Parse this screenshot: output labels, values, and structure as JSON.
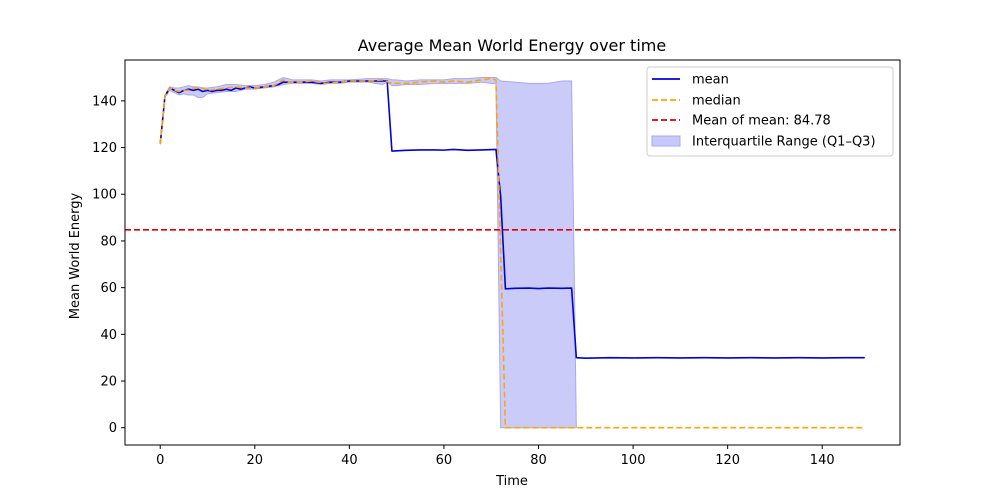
{
  "chart_data": {
    "type": "line",
    "title": "Average Mean World Energy over time",
    "xlabel": "Time",
    "ylabel": "Mean World Energy",
    "xlim": [
      -7.45,
      156.45
    ],
    "ylim": [
      -7.4,
      157.5
    ],
    "xticks": [
      0,
      20,
      40,
      60,
      80,
      100,
      120,
      140
    ],
    "yticks": [
      0,
      20,
      40,
      60,
      80,
      100,
      120,
      140
    ],
    "grid": false,
    "legend_position": "top-right",
    "colors": {
      "mean": "#0000dd",
      "median": "#ffa500",
      "mean_of_mean": "#dd0000",
      "iqr_fill": "#c8c8fa",
      "iqr_edge": "#a8a8f0"
    },
    "x_range": [
      0,
      149
    ],
    "series": [
      {
        "name": "mean",
        "style": "solid",
        "points": [
          [
            0,
            121.5
          ],
          [
            1,
            142
          ],
          [
            2,
            145.5
          ],
          [
            3,
            144.5
          ],
          [
            4,
            143.5
          ],
          [
            5,
            144.5
          ],
          [
            6,
            145
          ],
          [
            7,
            144.5
          ],
          [
            8,
            145
          ],
          [
            9,
            144
          ],
          [
            10,
            144.5
          ],
          [
            11,
            144
          ],
          [
            12,
            144.5
          ],
          [
            13,
            144.5
          ],
          [
            14,
            145
          ],
          [
            15,
            144.5
          ],
          [
            16,
            145.5
          ],
          [
            17,
            145
          ],
          [
            18,
            145.5
          ],
          [
            19,
            146
          ],
          [
            20,
            145.5
          ],
          [
            22,
            146
          ],
          [
            24,
            146.5
          ],
          [
            25,
            147
          ],
          [
            26,
            148
          ],
          [
            28,
            148
          ],
          [
            30,
            148
          ],
          [
            32,
            148
          ],
          [
            34,
            147.5
          ],
          [
            36,
            148
          ],
          [
            38,
            148
          ],
          [
            40,
            148.5
          ],
          [
            42,
            148.5
          ],
          [
            44,
            148.5
          ],
          [
            46,
            148.5
          ],
          [
            48,
            148.5
          ],
          [
            49,
            118.5
          ],
          [
            52,
            118.8
          ],
          [
            55,
            119
          ],
          [
            58,
            119
          ],
          [
            60,
            118.9
          ],
          [
            62,
            119.2
          ],
          [
            65,
            118.8
          ],
          [
            68,
            119
          ],
          [
            71,
            119.2
          ],
          [
            72,
            99
          ],
          [
            73,
            59.5
          ],
          [
            75,
            59.7
          ],
          [
            78,
            59.8
          ],
          [
            80,
            59.6
          ],
          [
            82,
            59.8
          ],
          [
            85,
            59.7
          ],
          [
            87,
            59.8
          ],
          [
            88,
            30
          ],
          [
            90,
            29.8
          ],
          [
            95,
            30
          ],
          [
            100,
            29.9
          ],
          [
            105,
            30
          ],
          [
            110,
            29.9
          ],
          [
            115,
            30
          ],
          [
            120,
            29.9
          ],
          [
            125,
            30
          ],
          [
            130,
            29.9
          ],
          [
            135,
            30
          ],
          [
            140,
            29.9
          ],
          [
            145,
            30
          ],
          [
            149,
            30
          ]
        ]
      },
      {
        "name": "median",
        "style": "dashed",
        "points": [
          [
            0,
            121.5
          ],
          [
            1,
            142
          ],
          [
            2,
            145.5
          ],
          [
            3,
            144.5
          ],
          [
            4,
            144
          ],
          [
            5,
            144.5
          ],
          [
            6,
            144.5
          ],
          [
            7,
            145.5
          ],
          [
            8,
            145.5
          ],
          [
            9,
            145.5
          ],
          [
            10,
            144.5
          ],
          [
            12,
            145
          ],
          [
            14,
            145.5
          ],
          [
            16,
            146
          ],
          [
            18,
            145.5
          ],
          [
            20,
            145.5
          ],
          [
            22,
            146
          ],
          [
            24,
            146.5
          ],
          [
            26,
            149
          ],
          [
            27,
            148
          ],
          [
            30,
            148
          ],
          [
            32,
            148.5
          ],
          [
            35,
            147.5
          ],
          [
            38,
            148
          ],
          [
            40,
            148.5
          ],
          [
            44,
            148.5
          ],
          [
            47,
            149
          ],
          [
            49,
            147.5
          ],
          [
            52,
            147.5
          ],
          [
            55,
            148
          ],
          [
            58,
            148.5
          ],
          [
            60,
            148
          ],
          [
            62,
            148.5
          ],
          [
            65,
            148
          ],
          [
            68,
            149
          ],
          [
            70,
            149.5
          ],
          [
            71,
            149
          ],
          [
            72,
            75
          ],
          [
            73,
            0
          ],
          [
            80,
            0
          ],
          [
            90,
            0
          ],
          [
            100,
            0
          ],
          [
            110,
            0
          ],
          [
            120,
            0
          ],
          [
            130,
            0
          ],
          [
            140,
            0
          ],
          [
            149,
            0
          ]
        ]
      },
      {
        "name": "Mean of mean: 84.78",
        "style": "dashed-horizontal",
        "value": 84.78
      }
    ],
    "iqr": {
      "name": "Interquartile Range (Q1–Q3)",
      "points": [
        [
          0,
          121.5,
          122.5
        ],
        [
          1,
          141.5,
          142.5
        ],
        [
          2,
          144.5,
          146
        ],
        [
          3,
          143.5,
          145.5
        ],
        [
          4,
          142.5,
          145.5
        ],
        [
          5,
          143,
          146
        ],
        [
          6,
          142.5,
          146.5
        ],
        [
          7,
          142.5,
          146
        ],
        [
          8,
          141.5,
          146
        ],
        [
          9,
          141.5,
          145.5
        ],
        [
          10,
          143,
          145.5
        ],
        [
          12,
          143.5,
          146
        ],
        [
          14,
          144,
          147
        ],
        [
          16,
          144,
          147
        ],
        [
          18,
          145,
          146.5
        ],
        [
          20,
          145,
          146.5
        ],
        [
          22,
          145.5,
          147
        ],
        [
          24,
          146,
          148
        ],
        [
          26,
          147,
          150
        ],
        [
          28,
          147.5,
          149
        ],
        [
          30,
          147.5,
          149
        ],
        [
          32,
          147.5,
          149
        ],
        [
          34,
          147,
          148.5
        ],
        [
          36,
          147.5,
          149
        ],
        [
          38,
          147.5,
          149
        ],
        [
          40,
          148,
          149
        ],
        [
          44,
          148,
          149.5
        ],
        [
          47,
          147,
          149.5
        ],
        [
          48,
          148,
          149.5
        ],
        [
          49,
          146.5,
          149
        ],
        [
          50,
          146.5,
          149
        ],
        [
          52,
          147,
          148.5
        ],
        [
          55,
          147,
          149
        ],
        [
          58,
          147.5,
          149
        ],
        [
          60,
          147.5,
          149
        ],
        [
          62,
          147.5,
          149.5
        ],
        [
          65,
          147.5,
          149.5
        ],
        [
          68,
          148,
          150
        ],
        [
          70,
          147.5,
          150
        ],
        [
          71,
          147.5,
          150
        ],
        [
          72,
          0,
          148.5
        ],
        [
          75,
          0,
          148
        ],
        [
          78,
          0,
          147.5
        ],
        [
          80,
          0,
          147.5
        ],
        [
          82,
          0,
          147.5
        ],
        [
          85,
          0,
          148.5
        ],
        [
          87,
          0,
          148.5
        ],
        [
          88,
          0,
          0
        ]
      ]
    }
  }
}
